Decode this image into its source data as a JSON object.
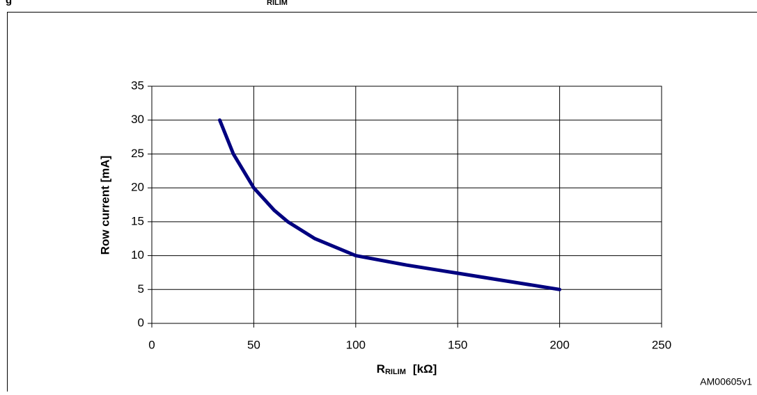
{
  "caption_fragments": [
    "g",
    "RILIM"
  ],
  "footer_code": "AM00605v1",
  "chart_data": {
    "type": "line",
    "ylabel": "Row current  [mA]",
    "xlabel": {
      "main": "R",
      "sub": "RILIM",
      "unit": "[kΩ]"
    },
    "x": [
      33.3,
      40,
      50,
      60,
      66.7,
      80,
      100,
      125,
      150,
      175,
      200
    ],
    "series": [
      {
        "color": "#000080",
        "values": [
          30,
          25,
          20,
          16.7,
          15,
          12.5,
          10,
          8.6,
          7.4,
          6.2,
          5
        ]
      }
    ],
    "xlim": [
      0,
      250
    ],
    "xticks": [
      0,
      50,
      100,
      150,
      200,
      250
    ],
    "ylim": [
      0,
      35
    ],
    "yticks": [
      0,
      5,
      10,
      15,
      20,
      25,
      30,
      35
    ],
    "grid": true
  }
}
